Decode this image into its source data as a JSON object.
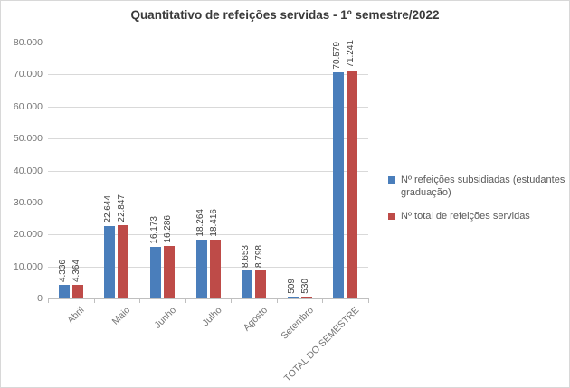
{
  "chart_data": {
    "type": "bar",
    "title": "Quantitativo de refeições servidas - 1º semestre/2022",
    "categories": [
      "Abril",
      "Maio",
      "Junho",
      "Julho",
      "Agosto",
      "Setembro",
      "TOTAL DO SEMESTRE"
    ],
    "series": [
      {
        "name": "Nº refeições subsidiadas (estudantes graduação)",
        "color": "#4a7ebb",
        "values": [
          4336,
          22644,
          16173,
          18264,
          8653,
          509,
          70579
        ],
        "data_labels": [
          "4.336",
          "22.644",
          "16.173",
          "18.264",
          "8.653",
          "509",
          "70.579"
        ]
      },
      {
        "name": "Nº total de refeições servidas",
        "color": "#be4b48",
        "values": [
          4364,
          22847,
          16286,
          18416,
          8798,
          530,
          71241
        ],
        "data_labels": [
          "4.364",
          "22.847",
          "16.286",
          "18.416",
          "8.798",
          "530",
          "71.241"
        ]
      }
    ],
    "xlabel": "",
    "ylabel": "",
    "ylim": [
      0,
      80000
    ],
    "ytick_step": 10000,
    "ytick_labels": [
      "0",
      "10.000",
      "20.000",
      "30.000",
      "40.000",
      "50.000",
      "60.000",
      "70.000",
      "80.000"
    ],
    "grid": "horizontal",
    "legend_position": "right",
    "data_label_rotation": "vertical",
    "x_label_rotation": -45
  },
  "colors": {
    "series_blue": "#4a7ebb",
    "series_red": "#be4b48",
    "gridline": "#d9d9d9",
    "axis_line": "#bfbfbf",
    "axis_text": "#757575",
    "data_label_text": "#3f3f3f",
    "legend_text": "#595959",
    "chart_border": "#d8d8d8",
    "background": "#ffffff"
  }
}
